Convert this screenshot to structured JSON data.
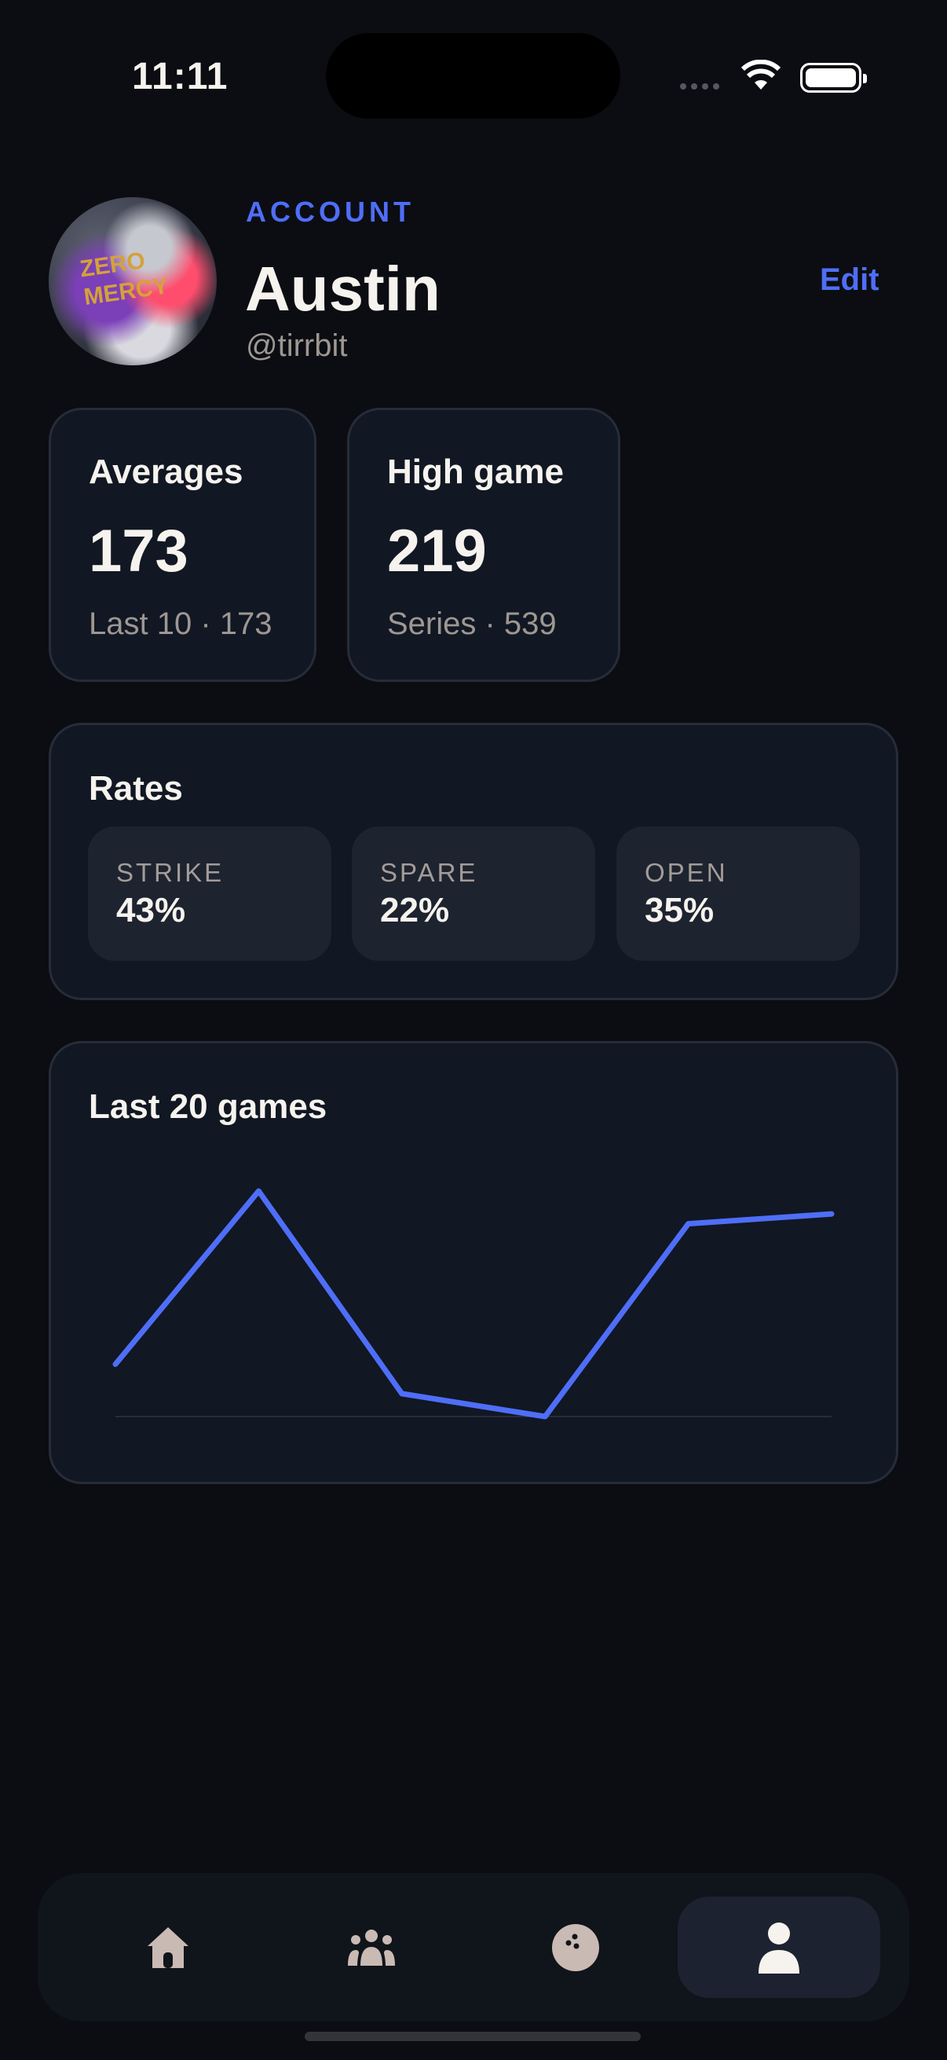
{
  "status": {
    "time": "11:11"
  },
  "header": {
    "kicker": "ACCOUNT",
    "name": "Austin",
    "handle": "@tirrbit",
    "edit_label": "Edit",
    "avatar_text": "ZERO MERCY"
  },
  "stats": [
    {
      "title": "Averages",
      "value": "173",
      "sub": "Last 10 · 173"
    },
    {
      "title": "High game",
      "value": "219",
      "sub": "Series · 539"
    }
  ],
  "rates": {
    "title": "Rates",
    "items": [
      {
        "label": "STRIKE",
        "value": "43%"
      },
      {
        "label": "SPARE",
        "value": "22%"
      },
      {
        "label": "OPEN",
        "value": "35%"
      }
    ]
  },
  "chart_data": {
    "type": "line",
    "title": "Last 20 games",
    "x": [
      1,
      2,
      3,
      4,
      5,
      6
    ],
    "values": [
      166,
      219,
      157,
      150,
      209,
      212
    ],
    "ylim": [
      150,
      219
    ],
    "xlabel": "",
    "ylabel": "",
    "grid": false,
    "color": "#4f6ef7"
  },
  "tabs": [
    {
      "icon": "home-icon"
    },
    {
      "icon": "people-icon"
    },
    {
      "icon": "bowling-ball-icon"
    },
    {
      "icon": "person-icon",
      "active": true
    }
  ],
  "colors": {
    "accent": "#4f6ef7",
    "background": "#0b0d12",
    "card": "#111723"
  }
}
